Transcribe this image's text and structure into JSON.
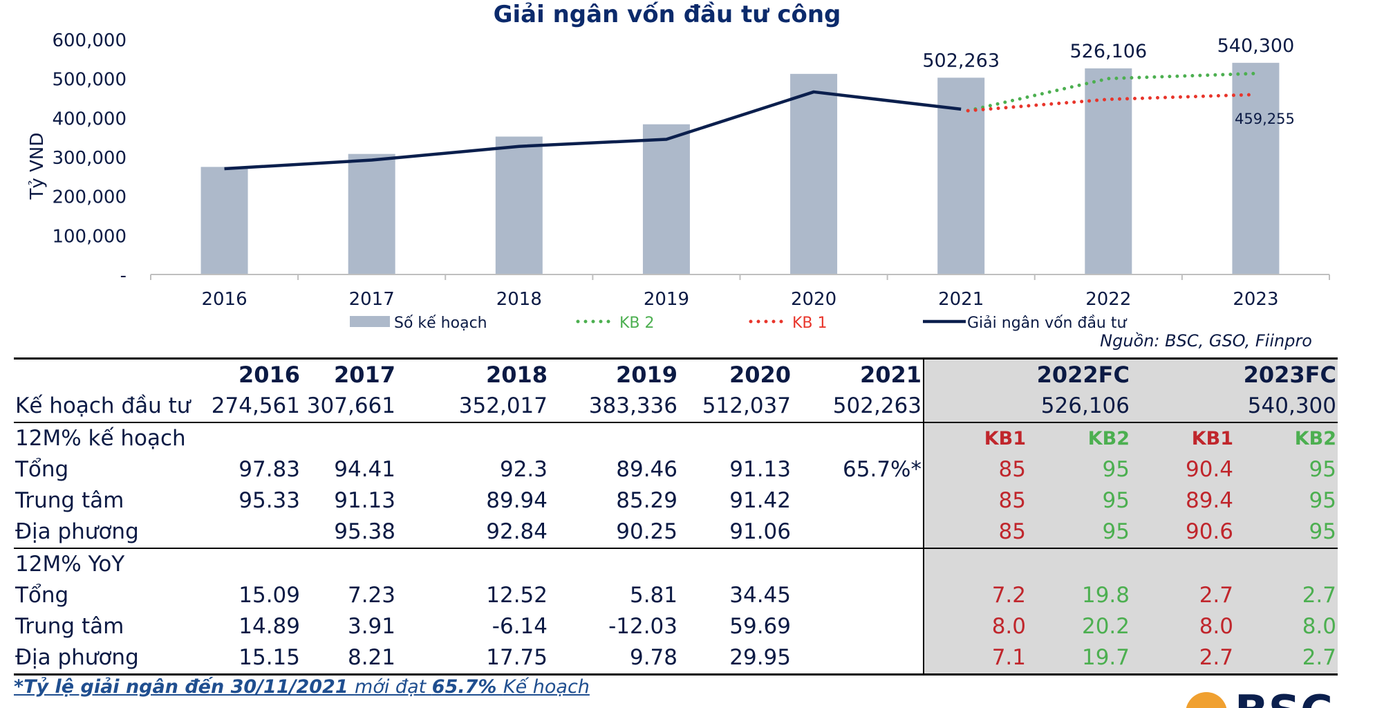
{
  "chart_data": {
    "type": "bar",
    "title": "Giải ngân vốn đầu tư công",
    "ylabel": "Tỷ VND",
    "ylim": [
      0,
      600000
    ],
    "yticks": [
      {
        "value": 0,
        "label": "-"
      },
      {
        "value": 100000,
        "label": "100,000"
      },
      {
        "value": 200000,
        "label": "200,000"
      },
      {
        "value": 300000,
        "label": "300,000"
      },
      {
        "value": 400000,
        "label": "400,000"
      },
      {
        "value": 500000,
        "label": "500,000"
      },
      {
        "value": 600000,
        "label": "600,000"
      }
    ],
    "categories": [
      "2016",
      "2017",
      "2018",
      "2019",
      "2020",
      "2021",
      "2022",
      "2023"
    ],
    "legend_position": "bottom",
    "series": [
      {
        "name": "Số kế hoạch",
        "kind": "bar",
        "color": "#adb9ca",
        "values": [
          274561,
          307661,
          352017,
          383336,
          512037,
          502263,
          526106,
          540300
        ]
      },
      {
        "name": "Giải ngân vốn đầu tư",
        "kind": "line",
        "style": "solid",
        "color": "#0b1f4d",
        "values": [
          270000,
          292000,
          327000,
          345000,
          466000,
          422000,
          null,
          null
        ]
      },
      {
        "name": "KB 2",
        "kind": "line",
        "style": "dotted",
        "color": "#4caf50",
        "values": [
          null,
          null,
          null,
          null,
          null,
          418000,
          500000,
          513000
        ]
      },
      {
        "name": "KB 1",
        "kind": "line",
        "style": "dotted",
        "color": "#e8352b",
        "values": [
          null,
          null,
          null,
          null,
          null,
          418000,
          447000,
          459255
        ]
      }
    ],
    "legend_order": [
      "Số kế hoạch",
      "KB 2",
      "KB 1",
      "Giải ngân vốn đầu tư"
    ],
    "annotations": [
      {
        "category": "2021",
        "value": 502263,
        "label": "502,263"
      },
      {
        "category": "2022",
        "value": 526106,
        "label": "526,106"
      },
      {
        "category": "2023",
        "value": 540300,
        "label": "540,300"
      },
      {
        "category": "2023",
        "value": 459255,
        "label": "459,255"
      }
    ]
  },
  "source": "Nguồn: BSC, GSO, Fiinpro",
  "table": {
    "years": [
      "2016",
      "2017",
      "2018",
      "2019",
      "2020",
      "2021"
    ],
    "forecast_years": [
      "2022FC",
      "2023FC"
    ],
    "plan_row": {
      "label": "Kế hoạch đầu tư",
      "values": [
        "274,561",
        "307,661",
        "352,017",
        "383,336",
        "512,037",
        "502,263"
      ],
      "forecast": [
        "526,106",
        "540,300"
      ]
    },
    "sections": [
      {
        "title": "12M% kế hoạch",
        "scenario_labels": [
          "KB1",
          "KB2",
          "KB1",
          "KB2"
        ],
        "rows": [
          {
            "label": "Tổng",
            "values": [
              "97.83",
              "94.41",
              "92.3",
              "89.46",
              "91.13",
              "65.7%*"
            ],
            "forecast": [
              "85",
              "95",
              "90.4",
              "95"
            ]
          },
          {
            "label": "Trung tâm",
            "values": [
              "95.33",
              "91.13",
              "89.94",
              "85.29",
              "91.42",
              ""
            ],
            "forecast": [
              "85",
              "95",
              "89.4",
              "95"
            ]
          },
          {
            "label": "Địa phương",
            "values": [
              "",
              "95.38",
              "92.84",
              "90.25",
              "91.06",
              ""
            ],
            "forecast": [
              "85",
              "95",
              "90.6",
              "95"
            ]
          }
        ]
      },
      {
        "title": "12M% YoY",
        "scenario_labels": [
          "",
          "",
          "",
          ""
        ],
        "rows": [
          {
            "label": "Tổng",
            "values": [
              "15.09",
              "7.23",
              "12.52",
              "5.81",
              "34.45",
              ""
            ],
            "forecast": [
              "7.2",
              "19.8",
              "2.7",
              "2.7"
            ]
          },
          {
            "label": "Trung tâm",
            "values": [
              "14.89",
              "3.91",
              "-6.14",
              "-12.03",
              "59.69",
              ""
            ],
            "forecast": [
              "8.0",
              "20.2",
              "8.0",
              "8.0"
            ]
          },
          {
            "label": "Địa phương",
            "values": [
              "15.15",
              "8.21",
              "17.75",
              "9.78",
              "29.95",
              ""
            ],
            "forecast": [
              "7.1",
              "19.7",
              "2.7",
              "2.7"
            ]
          }
        ]
      }
    ]
  },
  "footnote": {
    "part1": "*Tỷ lệ giải ngân đến 30/11/2021 ",
    "part2": "mới đạt ",
    "part3": "65.7% ",
    "part4": "Kế hoạch"
  },
  "logo": {
    "text": "BSC",
    "color": "#0b1f4d",
    "mark_color": "#f0a030"
  }
}
